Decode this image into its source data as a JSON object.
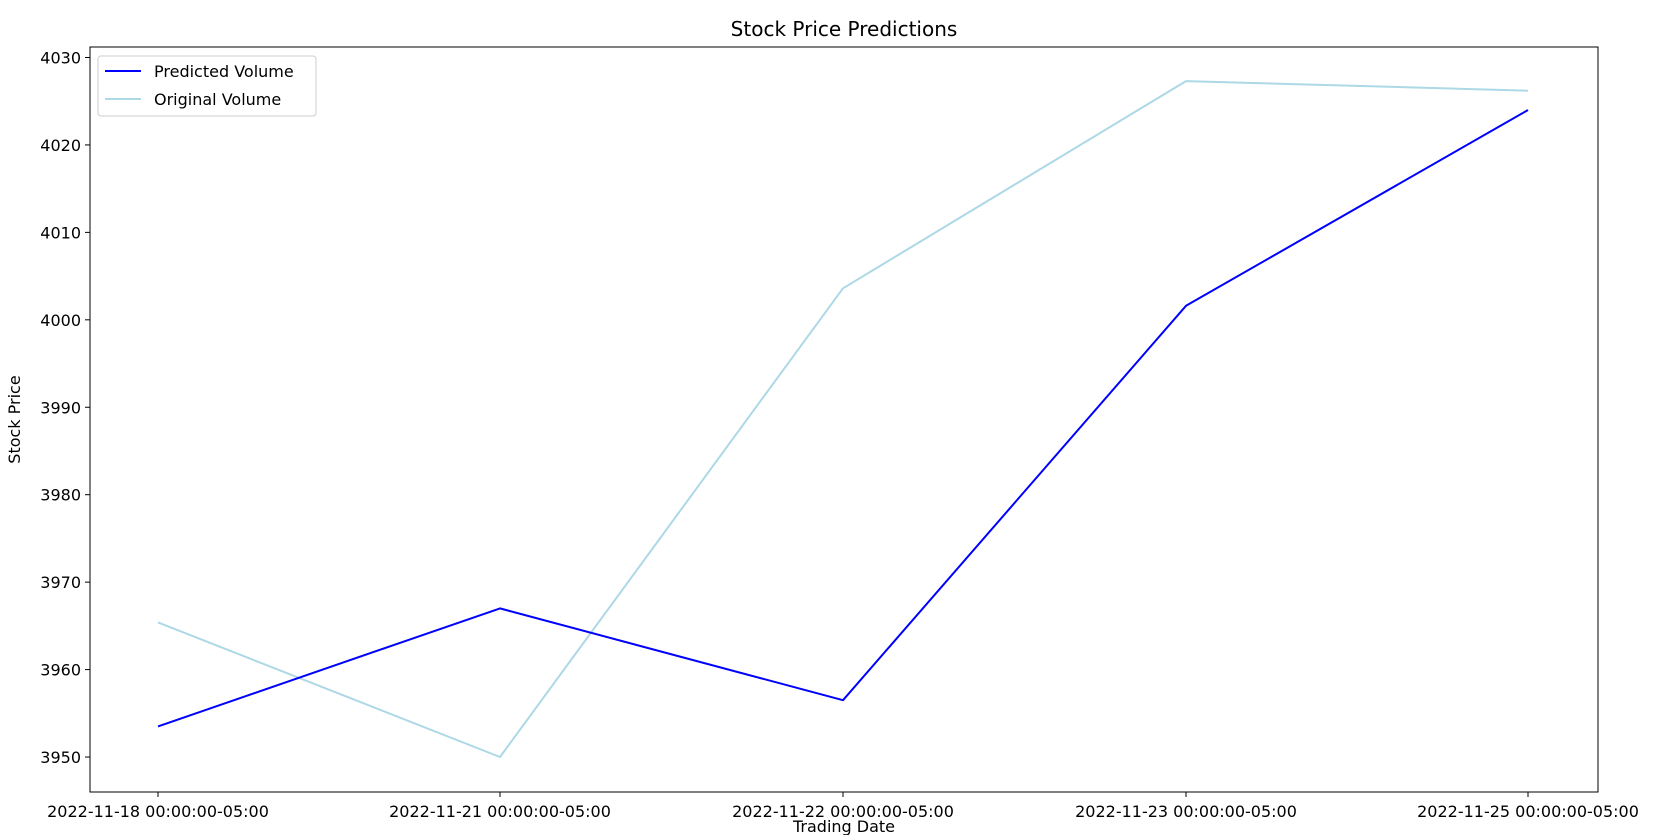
{
  "chart_data": {
    "type": "line",
    "title": "Stock Price Predictions",
    "xlabel": "Trading Date",
    "ylabel": "Stock Price",
    "x": [
      "2022-11-18 00:00:00-05:00",
      "2022-11-21 00:00:00-05:00",
      "2022-11-22 00:00:00-05:00",
      "2022-11-23 00:00:00-05:00",
      "2022-11-25 00:00:00-05:00"
    ],
    "ylim": [
      3946,
      4031.2
    ],
    "yticks": [
      3950,
      3960,
      3970,
      3980,
      3990,
      4000,
      4010,
      4020,
      4030
    ],
    "grid": false,
    "legend_position": "top-left",
    "series": [
      {
        "name": "Predicted Volume",
        "color": "#0000ff",
        "values": [
          3953.5,
          3967.0,
          3956.5,
          4001.6,
          4024.0
        ]
      },
      {
        "name": "Original Volume",
        "color": "#add8e6",
        "values": [
          3965.4,
          3950.0,
          4003.6,
          4027.3,
          4026.2
        ]
      }
    ]
  }
}
